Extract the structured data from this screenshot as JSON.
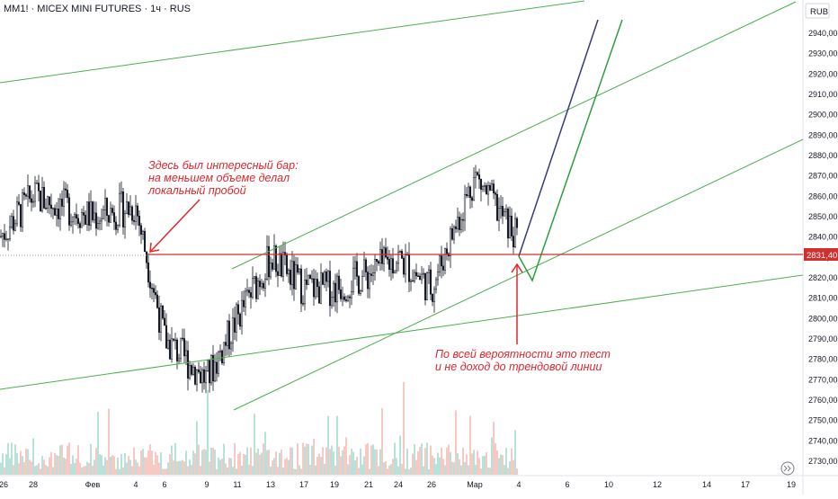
{
  "header": {
    "symbol_title": "MM1! · MICEX MINI FUTURES · 1ч · RUS"
  },
  "price_axis": {
    "currency_label": "RUB",
    "ticks": [
      "2940,00",
      "2930,00",
      "2920,00",
      "2910,00",
      "2900,00",
      "2890,00",
      "2880,00",
      "2870,00",
      "2860,00",
      "2850,00",
      "2840,00",
      "2830,00",
      "2820,00",
      "2810,00",
      "2800,00",
      "2790,00",
      "2780,00",
      "2770,00",
      "2760,00",
      "2750,00",
      "2740,00",
      "2730,00"
    ],
    "current_price_label": "2831,40"
  },
  "time_axis": {
    "ticks": [
      "26",
      "28",
      "Фев",
      "4",
      "6",
      "9",
      "11",
      "13",
      "17",
      "19",
      "21",
      "24",
      "26",
      "Мар",
      "4",
      "6",
      "10",
      "12",
      "14",
      "17",
      "19"
    ]
  },
  "annotations": {
    "top_left": "Здесь был интересный бар:\nна меньшем объеме делал\nлокальный пробой",
    "bottom_right": "По всей вероятности это тест\nи не доход до трендовой линии"
  },
  "colors": {
    "trend_line": "#4caf50",
    "forecast_dark": "#363a7a",
    "forecast_green": "#2e9f3e",
    "level_line": "#d32f2f",
    "candle": "#131722",
    "volume_up": "#8fd1c4",
    "volume_down": "#f4a9a4",
    "annotation": "#e0262e",
    "price_badge": "#d32f2f"
  },
  "chart_data": {
    "type": "candlestick",
    "y_axis_range": [
      2725,
      2950
    ],
    "horizontal_level": 2831.4,
    "price_path": [
      {
        "x": "26",
        "y": 2840
      },
      {
        "x": "28",
        "y": 2860
      },
      {
        "x": "Фев",
        "y": 2850
      },
      {
        "x": "4",
        "y": 2855
      },
      {
        "x": "6",
        "y": 2790
      },
      {
        "x": "9",
        "y": 2770
      },
      {
        "x": "11",
        "y": 2800
      },
      {
        "x": "13",
        "y": 2830
      },
      {
        "x": "17",
        "y": 2815
      },
      {
        "x": "19",
        "y": 2815
      },
      {
        "x": "21",
        "y": 2822
      },
      {
        "x": "24",
        "y": 2830
      },
      {
        "x": "26",
        "y": 2815
      },
      {
        "x": "Мар",
        "y": 2870
      },
      {
        "x": "4",
        "y": 2838
      }
    ]
  }
}
